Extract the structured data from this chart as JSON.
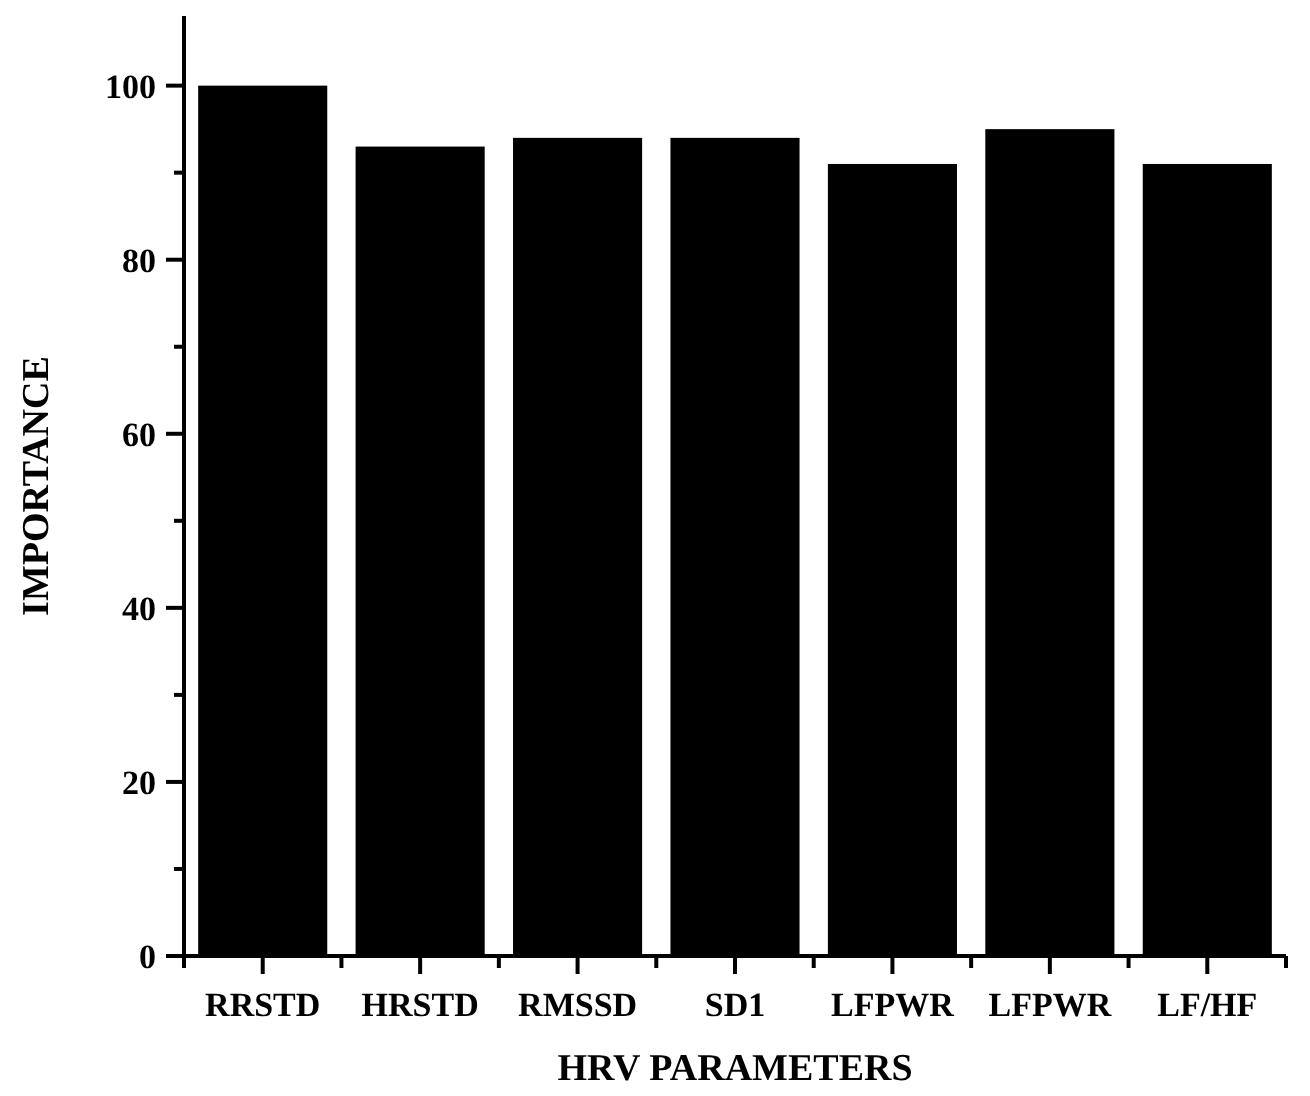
{
  "chart_data": {
    "type": "bar",
    "xlabel": "HRV PARAMETERS",
    "ylabel": "IMPORTANCE",
    "categories": [
      "RRSTD",
      "HRSTD",
      "RMSSD",
      "SD1",
      "LFPWR",
      "LFPWR",
      "LF/HF"
    ],
    "values": [
      100,
      93,
      94,
      94,
      91,
      95,
      91
    ],
    "color": "#000000",
    "ylim": [
      0,
      108
    ],
    "yticks": [
      0,
      {
        "value": 10,
        "label": null
      },
      20,
      {
        "value": 30,
        "label": null
      },
      40,
      {
        "value": 50,
        "label": null
      },
      60,
      {
        "value": 70,
        "label": null
      },
      80,
      {
        "value": 90,
        "label": null
      },
      100
    ],
    "grid": false
  }
}
